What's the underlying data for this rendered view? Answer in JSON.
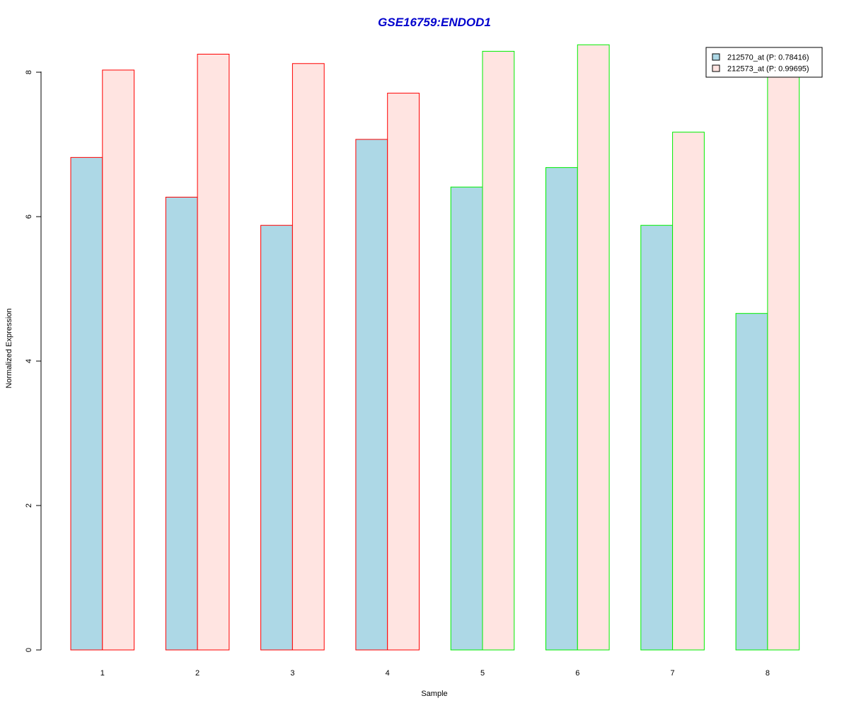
{
  "chart_data": {
    "type": "bar",
    "title": "GSE16759:ENDOD1",
    "xlabel": "Sample",
    "ylabel": "Normalized Expression",
    "categories": [
      "1",
      "2",
      "3",
      "4",
      "5",
      "6",
      "7",
      "8"
    ],
    "ylim": [
      0,
      8.4
    ],
    "yticks": [
      "0",
      "2",
      "4",
      "6",
      "8"
    ],
    "series": [
      {
        "name": "212570_at (P: 0.78416)",
        "fill": "#add8e6",
        "values": [
          6.82,
          6.27,
          5.88,
          7.07,
          6.41,
          6.68,
          5.88,
          4.66
        ]
      },
      {
        "name": "212573_at (P: 0.99695)",
        "fill": "#ffe4e1",
        "values": [
          8.03,
          8.25,
          8.12,
          7.71,
          8.29,
          8.38,
          7.17,
          7.95
        ]
      }
    ],
    "group_border_colors": [
      "#ff0000",
      "#ff0000",
      "#ff0000",
      "#ff0000",
      "#00ee00",
      "#00ee00",
      "#00ee00",
      "#00ee00"
    ],
    "title_color": "#0000cd",
    "legend_position": "top-right",
    "grid": false
  }
}
